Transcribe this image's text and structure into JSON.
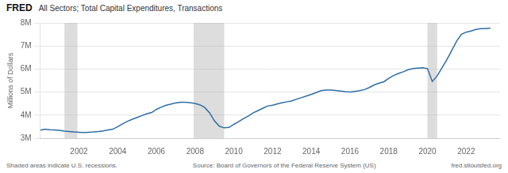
{
  "chart_data": {
    "type": "line",
    "title": "All Sectors; Total Capital Expenditures, Transactions",
    "ylabel": "Millions of Dollars",
    "annotations": [
      "FRED",
      "Shaded areas indicate U.S. recessions.",
      "Source: Board of Governors of the Federal Reserve System (US)",
      "fred.stlouisfed.org"
    ],
    "color": "#2e6da4",
    "recessions": [
      [
        2001.25,
        2001.92
      ],
      [
        2007.92,
        2009.5
      ],
      [
        2020.0,
        2020.5
      ]
    ],
    "x": [
      2000.0,
      2000.25,
      2000.5,
      2000.75,
      2001.0,
      2001.25,
      2001.5,
      2001.75,
      2002.0,
      2002.25,
      2002.5,
      2002.75,
      2003.0,
      2003.25,
      2003.5,
      2003.75,
      2004.0,
      2004.25,
      2004.5,
      2004.75,
      2005.0,
      2005.25,
      2005.5,
      2005.75,
      2006.0,
      2006.25,
      2006.5,
      2006.75,
      2007.0,
      2007.25,
      2007.5,
      2007.75,
      2008.0,
      2008.25,
      2008.5,
      2008.75,
      2009.0,
      2009.25,
      2009.5,
      2009.75,
      2010.0,
      2010.25,
      2010.5,
      2010.75,
      2011.0,
      2011.25,
      2011.5,
      2011.75,
      2012.0,
      2012.25,
      2012.5,
      2012.75,
      2013.0,
      2013.25,
      2013.5,
      2013.75,
      2014.0,
      2014.25,
      2014.5,
      2014.75,
      2015.0,
      2015.25,
      2015.5,
      2015.75,
      2016.0,
      2016.25,
      2016.5,
      2016.75,
      2017.0,
      2017.25,
      2017.5,
      2017.75,
      2018.0,
      2018.25,
      2018.5,
      2018.75,
      2019.0,
      2019.25,
      2019.5,
      2019.75,
      2020.0,
      2020.25,
      2020.5,
      2020.75,
      2021.0,
      2021.25,
      2021.5,
      2021.75,
      2022.0,
      2022.25,
      2022.5,
      2022.75,
      2023.0,
      2023.25
    ],
    "values": [
      3350000,
      3390000,
      3370000,
      3360000,
      3340000,
      3310000,
      3290000,
      3270000,
      3260000,
      3250000,
      3260000,
      3270000,
      3290000,
      3320000,
      3360000,
      3390000,
      3500000,
      3620000,
      3730000,
      3820000,
      3900000,
      3980000,
      4060000,
      4110000,
      4250000,
      4350000,
      4430000,
      4480000,
      4530000,
      4560000,
      4560000,
      4540000,
      4510000,
      4450000,
      4330000,
      4100000,
      3750000,
      3520000,
      3450000,
      3470000,
      3600000,
      3720000,
      3850000,
      3960000,
      4100000,
      4200000,
      4300000,
      4400000,
      4430000,
      4490000,
      4540000,
      4580000,
      4620000,
      4700000,
      4760000,
      4830000,
      4900000,
      4980000,
      5060000,
      5090000,
      5090000,
      5070000,
      5050000,
      5020000,
      5000000,
      5030000,
      5060000,
      5110000,
      5200000,
      5310000,
      5390000,
      5450000,
      5600000,
      5720000,
      5810000,
      5880000,
      5970000,
      6020000,
      6040000,
      6060000,
      6020000,
      5460000,
      5700000,
      6050000,
      6400000,
      6800000,
      7200000,
      7500000,
      7600000,
      7650000,
      7720000,
      7750000,
      7750000,
      7780000
    ],
    "xlim": [
      2000.0,
      2023.75
    ],
    "xticks": [
      2002,
      2004,
      2006,
      2008,
      2010,
      2012,
      2014,
      2016,
      2018,
      2020,
      2022
    ],
    "ylim": [
      3000000,
      8000000
    ],
    "yticks": [
      {
        "value": 3000000,
        "label": "3M"
      },
      {
        "value": 4000000,
        "label": "4M"
      },
      {
        "value": 5000000,
        "label": "5M"
      },
      {
        "value": 6000000,
        "label": "6M"
      },
      {
        "value": 7000000,
        "label": "7M"
      },
      {
        "value": 8000000,
        "label": "8M"
      }
    ],
    "grid": "y"
  }
}
